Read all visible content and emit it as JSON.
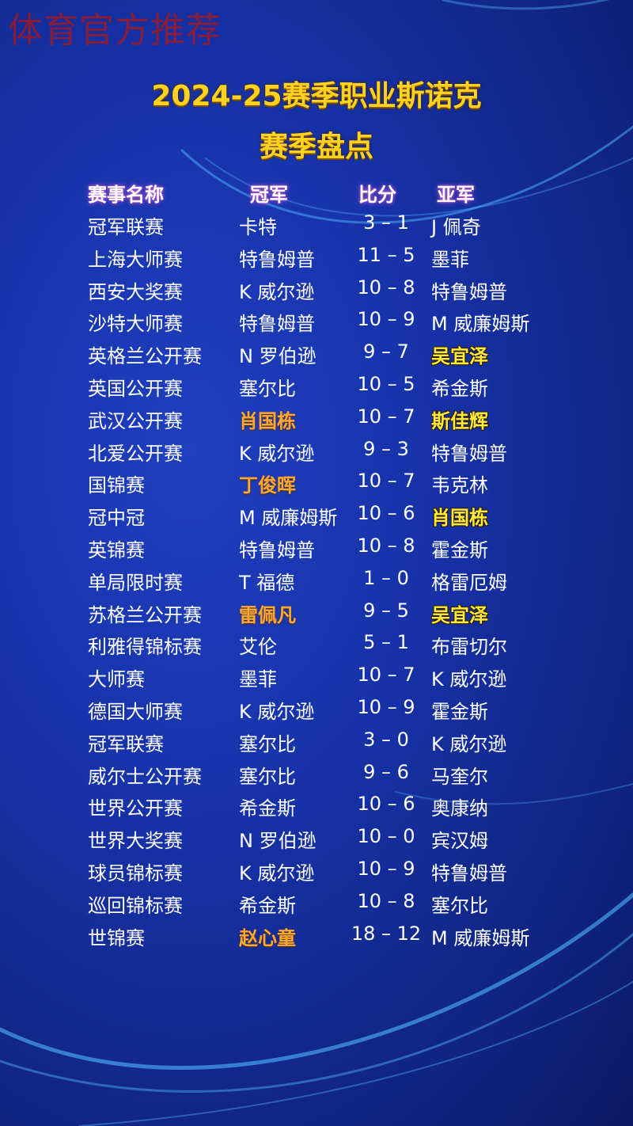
{
  "watermark": "体育官方推荐",
  "title_line1": "2024-25赛季职业斯诺克",
  "title_line2": "赛季盘点",
  "colors": {
    "champion_highlight": "#ffa934",
    "runner_up_highlight": "#ffea3a",
    "background": "#1732a8"
  },
  "headers": {
    "event": "赛事名称",
    "champion": "冠军",
    "score": "比分",
    "runner_up": "亚军"
  },
  "rows": [
    {
      "event": "冠军联赛",
      "champion": "卡特",
      "score": "3 – 1",
      "runner_up": "J 佩奇"
    },
    {
      "event": "上海大师赛",
      "champion": "特鲁姆普",
      "score": "11 – 5",
      "runner_up": "墨菲"
    },
    {
      "event": "西安大奖赛",
      "champion": "K 威尔逊",
      "score": "10 – 8",
      "runner_up": "特鲁姆普"
    },
    {
      "event": "沙特大师赛",
      "champion": "特鲁姆普",
      "score": "10 – 9",
      "runner_up": "M 威廉姆斯"
    },
    {
      "event": "英格兰公开赛",
      "champion": "N 罗伯逊",
      "score": "9 – 7",
      "runner_up": "吴宜泽",
      "runner_hl": true
    },
    {
      "event": "英国公开赛",
      "champion": "塞尔比",
      "score": "10 – 5",
      "runner_up": "希金斯"
    },
    {
      "event": "武汉公开赛",
      "champion": "肖国栋",
      "score": "10 – 7",
      "runner_up": "斯佳辉",
      "champ_hl": true,
      "runner_hl": true
    },
    {
      "event": "北爱公开赛",
      "champion": "K 威尔逊",
      "score": "9 – 3",
      "runner_up": "特鲁姆普"
    },
    {
      "event": "国锦赛",
      "champion": "丁俊晖",
      "score": "10 – 7",
      "runner_up": "韦克林",
      "champ_hl": true
    },
    {
      "event": "冠中冠",
      "champion": "M 威廉姆斯",
      "score": "10 – 6",
      "runner_up": "肖国栋",
      "runner_hl": true
    },
    {
      "event": "英锦赛",
      "champion": "特鲁姆普",
      "score": "10 – 8",
      "runner_up": "霍金斯"
    },
    {
      "event": "单局限时赛",
      "champion": "T 福德",
      "score": "1 – 0",
      "runner_up": "格雷厄姆"
    },
    {
      "event": "苏格兰公开赛",
      "champion": "雷佩凡",
      "score": "9 – 5",
      "runner_up": "吴宜泽",
      "champ_hl": true,
      "runner_hl": true
    },
    {
      "event": "利雅得锦标赛",
      "champion": "艾伦",
      "score": "5 – 1",
      "runner_up": "布雷切尔"
    },
    {
      "event": "大师赛",
      "champion": "墨菲",
      "score": "10 – 7",
      "runner_up": "K 威尔逊"
    },
    {
      "event": "德国大师赛",
      "champion": "K 威尔逊",
      "score": "10 – 9",
      "runner_up": "霍金斯"
    },
    {
      "event": "冠军联赛",
      "champion": "塞尔比",
      "score": "3 – 0",
      "runner_up": "K 威尔逊"
    },
    {
      "event": "威尔士公开赛",
      "champion": "塞尔比",
      "score": "9 – 6",
      "runner_up": "马奎尔"
    },
    {
      "event": "世界公开赛",
      "champion": "希金斯",
      "score": "10 – 6",
      "runner_up": "奥康纳"
    },
    {
      "event": "世界大奖赛",
      "champion": "N 罗伯逊",
      "score": "10 – 0",
      "runner_up": "宾汉姆"
    },
    {
      "event": "球员锦标赛",
      "champion": "K 威尔逊",
      "score": "10 – 9",
      "runner_up": "特鲁姆普"
    },
    {
      "event": "巡回锦标赛",
      "champion": "希金斯",
      "score": "10 – 8",
      "runner_up": "塞尔比"
    },
    {
      "event": "世锦赛",
      "champion": "赵心童",
      "score": "18 – 12",
      "runner_up": "M 威廉姆斯",
      "champ_hl": true
    }
  ]
}
